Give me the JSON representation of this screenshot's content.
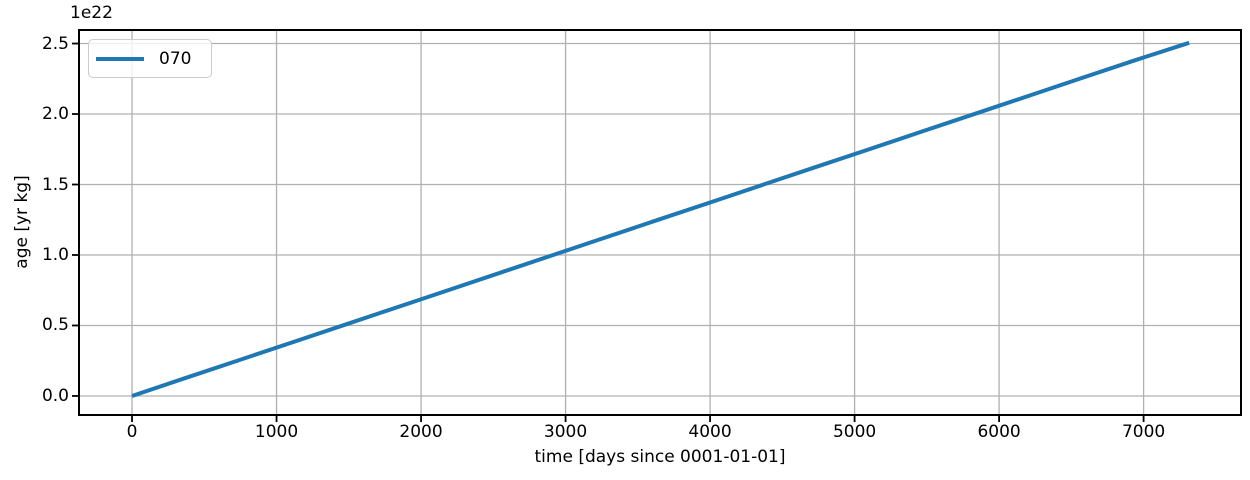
{
  "chart_data": {
    "type": "line",
    "title": "",
    "xlabel": "time [days since 0001-01-01]",
    "ylabel": "age [yr kg]",
    "y_offset_text": "1e22",
    "grid": true,
    "legend": {
      "position": "upper left",
      "entries": [
        {
          "label": "070",
          "color": "#1f77b4"
        }
      ]
    },
    "xlim": [
      -367,
      7674
    ],
    "ylim_1e22": [
      -0.135,
      2.596
    ],
    "xticks": [
      0,
      1000,
      2000,
      3000,
      4000,
      5000,
      6000,
      7000
    ],
    "xtick_labels": [
      "0",
      "1000",
      "2000",
      "3000",
      "4000",
      "5000",
      "6000",
      "7000"
    ],
    "yticks_1e22": [
      0.0,
      0.5,
      1.0,
      1.5,
      2.0,
      2.5
    ],
    "ytick_labels": [
      "0.0",
      "0.5",
      "1.0",
      "1.5",
      "2.0",
      "2.5"
    ],
    "series": [
      {
        "name": "070",
        "color": "#1f77b4",
        "x_days": [
          0,
          366,
          731,
          1096,
          1461,
          1827,
          2192,
          2557,
          2922,
          3288,
          3653,
          4018,
          4383,
          4749,
          5114,
          5479,
          5844,
          6210,
          6575,
          6940,
          7315
        ],
        "y_1e22": [
          0.0,
          0.126,
          0.251,
          0.376,
          0.501,
          0.627,
          0.752,
          0.877,
          1.003,
          1.128,
          1.254,
          1.379,
          1.504,
          1.63,
          1.755,
          1.88,
          2.005,
          2.131,
          2.256,
          2.381,
          2.505
        ]
      }
    ],
    "colors": {
      "background": "#ffffff",
      "line": "#1f77b4",
      "grid": "#b0b0b0",
      "axes": "#000000",
      "legend_border": "#cccccc"
    }
  }
}
